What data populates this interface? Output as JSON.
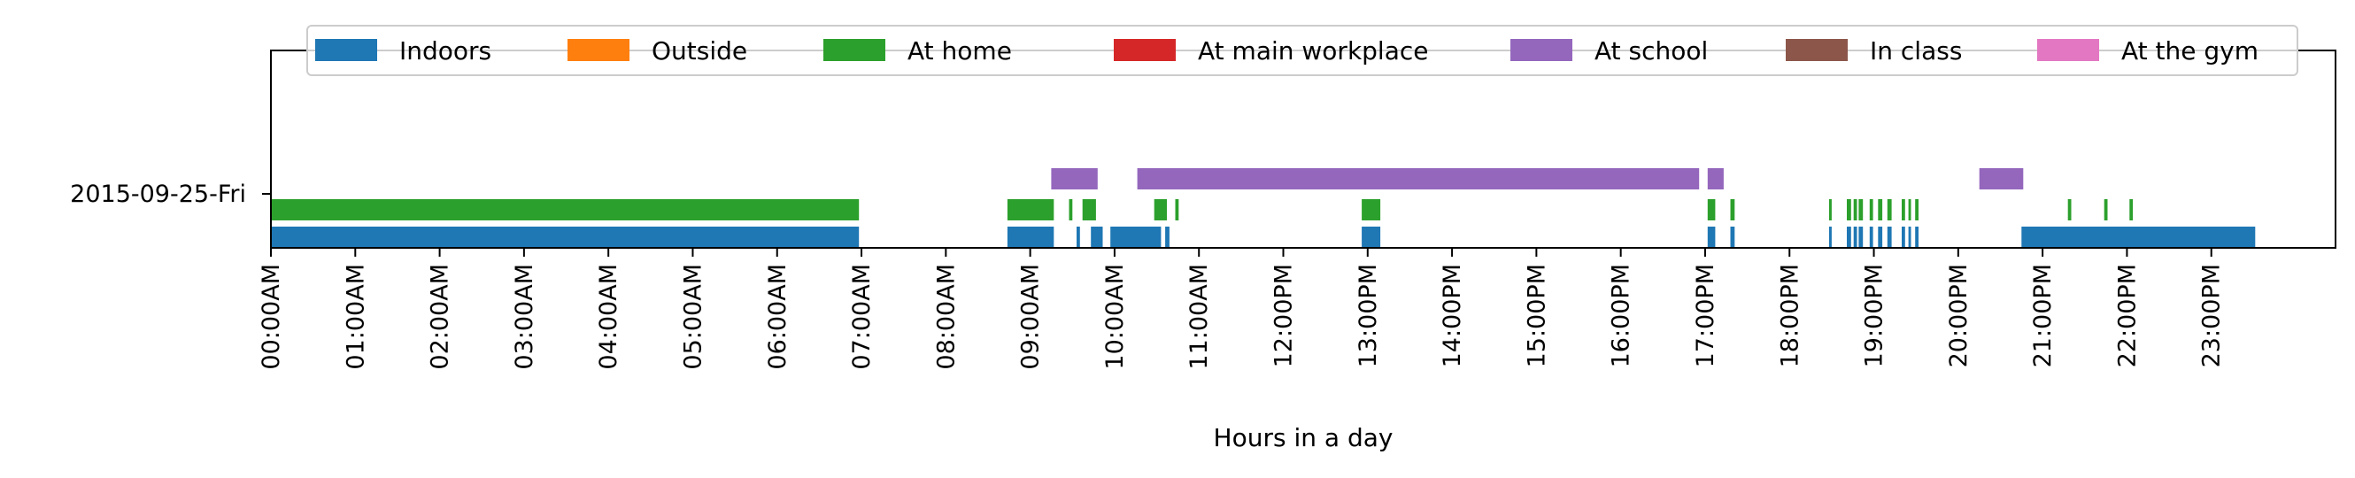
{
  "chart_data": {
    "type": "timeline",
    "title": "",
    "xlabel": "Hours in a day",
    "ylabel": "",
    "xlim": [
      0,
      24
    ],
    "grid": false,
    "legend_placement": "top-center",
    "row_label": "2015-09-25-Fri",
    "x_ticks": [
      {
        "value": 0,
        "label": "00:00AM"
      },
      {
        "value": 1,
        "label": "01:00AM"
      },
      {
        "value": 2,
        "label": "02:00AM"
      },
      {
        "value": 3,
        "label": "03:00AM"
      },
      {
        "value": 4,
        "label": "04:00AM"
      },
      {
        "value": 5,
        "label": "05:00AM"
      },
      {
        "value": 6,
        "label": "06:00AM"
      },
      {
        "value": 7,
        "label": "07:00AM"
      },
      {
        "value": 8,
        "label": "08:00AM"
      },
      {
        "value": 9,
        "label": "09:00AM"
      },
      {
        "value": 10,
        "label": "10:00AM"
      },
      {
        "value": 11,
        "label": "11:00AM"
      },
      {
        "value": 12,
        "label": "12:00PM"
      },
      {
        "value": 13,
        "label": "13:00PM"
      },
      {
        "value": 14,
        "label": "14:00PM"
      },
      {
        "value": 15,
        "label": "15:00PM"
      },
      {
        "value": 16,
        "label": "16:00PM"
      },
      {
        "value": 17,
        "label": "17:00PM"
      },
      {
        "value": 18,
        "label": "18:00PM"
      },
      {
        "value": 19,
        "label": "19:00PM"
      },
      {
        "value": 20,
        "label": "20:00PM"
      },
      {
        "value": 21,
        "label": "21:00PM"
      },
      {
        "value": 22,
        "label": "22:00PM"
      },
      {
        "value": 23,
        "label": "23:00PM"
      }
    ],
    "series": [
      {
        "name": "Indoors",
        "color": "#1f77b4",
        "segments": [
          [
            0,
            6.97
          ],
          [
            8.73,
            9.28
          ],
          [
            9.55,
            9.59
          ],
          [
            9.72,
            9.86
          ],
          [
            9.95,
            10.55
          ],
          [
            10.6,
            10.65
          ],
          [
            12.93,
            13.15
          ],
          [
            17.03,
            17.12
          ],
          [
            17.3,
            17.35
          ],
          [
            18.47,
            18.5
          ],
          [
            18.68,
            18.73
          ],
          [
            18.76,
            18.8
          ],
          [
            18.82,
            18.87
          ],
          [
            18.95,
            18.99
          ],
          [
            19.05,
            19.1
          ],
          [
            19.16,
            19.21
          ],
          [
            19.33,
            19.37
          ],
          [
            19.41,
            19.44
          ],
          [
            19.49,
            19.53
          ],
          [
            20.75,
            23.52
          ]
        ]
      },
      {
        "name": "Outside",
        "color": "#ff7f0e",
        "segments": []
      },
      {
        "name": "At home",
        "color": "#2ca02c",
        "segments": [
          [
            0,
            6.97
          ],
          [
            8.73,
            9.28
          ],
          [
            9.46,
            9.5
          ],
          [
            9.62,
            9.78
          ],
          [
            10.47,
            10.62
          ],
          [
            10.72,
            10.76
          ],
          [
            12.93,
            13.15
          ],
          [
            17.03,
            17.12
          ],
          [
            17.3,
            17.35
          ],
          [
            18.47,
            18.5
          ],
          [
            18.68,
            18.73
          ],
          [
            18.76,
            18.8
          ],
          [
            18.82,
            18.87
          ],
          [
            18.95,
            18.99
          ],
          [
            19.05,
            19.1
          ],
          [
            19.16,
            19.21
          ],
          [
            19.33,
            19.37
          ],
          [
            19.41,
            19.44
          ],
          [
            19.49,
            19.53
          ],
          [
            21.3,
            21.34
          ],
          [
            21.73,
            21.77
          ],
          [
            22.03,
            22.07
          ]
        ]
      },
      {
        "name": "At main workplace",
        "color": "#d62728",
        "segments": []
      },
      {
        "name": "At school",
        "color": "#9467bd",
        "segments": [
          [
            9.25,
            9.8
          ],
          [
            10.27,
            16.93
          ],
          [
            17.03,
            17.22
          ],
          [
            20.25,
            20.77
          ]
        ]
      },
      {
        "name": "In class",
        "color": "#8c564b",
        "segments": []
      },
      {
        "name": "At the gym",
        "color": "#e377c2",
        "segments": []
      }
    ]
  }
}
